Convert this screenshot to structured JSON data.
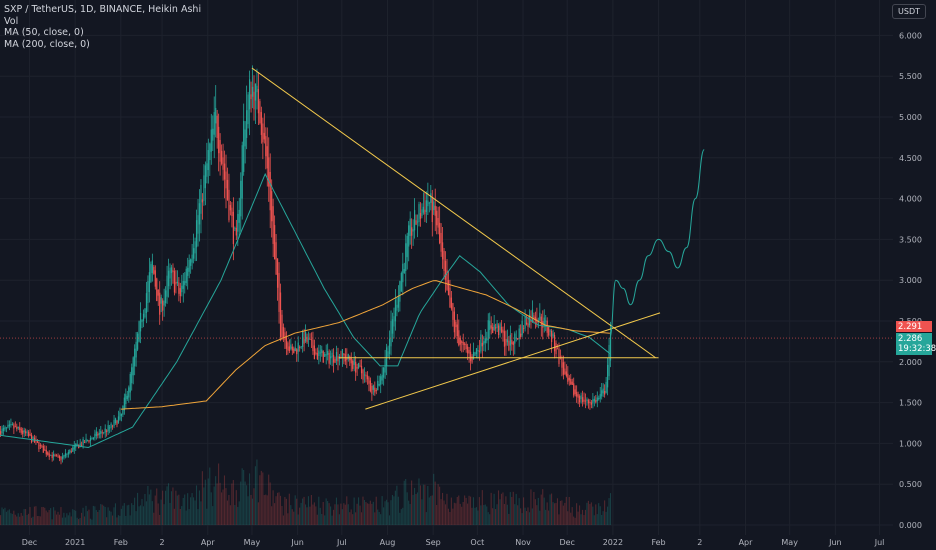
{
  "header": {
    "symbol_line": "SXP / TetherUS, 1D, BINANCE, Heikin Ashi",
    "vol_label": "Vol",
    "ma50_label": "MA (50, close, 0)",
    "ma200_label": "MA (200, close, 0)",
    "currency": "USDT"
  },
  "price_tags": {
    "last_close": "2.291",
    "current": "2.286",
    "countdown": "19:32:38"
  },
  "colors": {
    "background": "#131722",
    "up": "#26a69a",
    "down": "#ef5350",
    "ma50": "#26a69a",
    "ma200": "#f0a53a",
    "trendline": "#f2c94c",
    "projection": "#26a69a",
    "grid": "#1e222d"
  },
  "chart_data": {
    "type": "candlestick",
    "y_axis": {
      "ticks": [
        "6.000",
        "5.500",
        "5.000",
        "4.500",
        "4.000",
        "3.500",
        "3.000",
        "2.500",
        "2.000",
        "1.500",
        "1.000",
        "0.500",
        "0.000"
      ],
      "range": [
        0,
        6.4
      ]
    },
    "x_axis": {
      "ticks": [
        "Dec",
        "2021",
        "Feb",
        "2",
        "Apr",
        "May",
        "Jun",
        "Jul",
        "Aug",
        "Sep",
        "Oct",
        "Nov",
        "Dec",
        "2022",
        "Feb",
        "2",
        "Apr",
        "May",
        "Jun",
        "Jul"
      ],
      "tick_days": [
        20,
        51,
        82,
        110,
        141,
        171,
        202,
        232,
        263,
        294,
        324,
        355,
        385,
        416,
        447,
        475,
        506,
        536,
        567,
        597
      ]
    },
    "price_anchors": [
      [
        0,
        1.15
      ],
      [
        8,
        1.2
      ],
      [
        18,
        1.1
      ],
      [
        30,
        0.9
      ],
      [
        40,
        0.8
      ],
      [
        50,
        0.95
      ],
      [
        60,
        1.05
      ],
      [
        75,
        1.2
      ],
      [
        82,
        1.35
      ],
      [
        88,
        1.8
      ],
      [
        95,
        2.5
      ],
      [
        103,
        3.2
      ],
      [
        108,
        2.6
      ],
      [
        115,
        3.1
      ],
      [
        122,
        2.8
      ],
      [
        132,
        3.6
      ],
      [
        140,
        4.4
      ],
      [
        146,
        5.0
      ],
      [
        150,
        4.5
      ],
      [
        155,
        3.9
      ],
      [
        160,
        3.4
      ],
      [
        165,
        4.9
      ],
      [
        170,
        5.4
      ],
      [
        176,
        5.1
      ],
      [
        182,
        4.2
      ],
      [
        186,
        3.2
      ],
      [
        190,
        2.4
      ],
      [
        198,
        2.1
      ],
      [
        206,
        2.3
      ],
      [
        214,
        2.1
      ],
      [
        222,
        2.05
      ],
      [
        230,
        2.1
      ],
      [
        238,
        2.0
      ],
      [
        246,
        1.85
      ],
      [
        252,
        1.65
      ],
      [
        258,
        1.8
      ],
      [
        265,
        2.4
      ],
      [
        272,
        3.1
      ],
      [
        278,
        3.6
      ],
      [
        284,
        3.8
      ],
      [
        290,
        4.0
      ],
      [
        296,
        3.7
      ],
      [
        302,
        2.9
      ],
      [
        308,
        2.4
      ],
      [
        314,
        2.15
      ],
      [
        320,
        2.05
      ],
      [
        326,
        2.25
      ],
      [
        332,
        2.45
      ],
      [
        338,
        2.4
      ],
      [
        344,
        2.2
      ],
      [
        350,
        2.3
      ],
      [
        356,
        2.5
      ],
      [
        362,
        2.6
      ],
      [
        368,
        2.5
      ],
      [
        374,
        2.3
      ],
      [
        380,
        2.0
      ],
      [
        384,
        1.75
      ],
      [
        390,
        1.6
      ],
      [
        398,
        1.5
      ],
      [
        406,
        1.55
      ],
      [
        410,
        1.65
      ],
      [
        414,
        2.29
      ]
    ],
    "series": [
      {
        "name": "MA (50, close, 0)",
        "anchors": [
          [
            0,
            1.1
          ],
          [
            60,
            0.95
          ],
          [
            90,
            1.2
          ],
          [
            120,
            2.0
          ],
          [
            150,
            3.0
          ],
          [
            180,
            4.3
          ],
          [
            200,
            3.6
          ],
          [
            220,
            2.9
          ],
          [
            240,
            2.3
          ],
          [
            258,
            1.95
          ],
          [
            270,
            1.95
          ],
          [
            285,
            2.6
          ],
          [
            300,
            3.0
          ],
          [
            312,
            3.3
          ],
          [
            326,
            3.1
          ],
          [
            345,
            2.7
          ],
          [
            365,
            2.45
          ],
          [
            385,
            2.4
          ],
          [
            400,
            2.3
          ],
          [
            414,
            2.1
          ]
        ]
      },
      {
        "name": "MA (200, close, 0)",
        "anchors": [
          [
            82,
            1.42
          ],
          [
            110,
            1.45
          ],
          [
            140,
            1.52
          ],
          [
            160,
            1.9
          ],
          [
            180,
            2.2
          ],
          [
            200,
            2.35
          ],
          [
            230,
            2.48
          ],
          [
            260,
            2.7
          ],
          [
            280,
            2.9
          ],
          [
            295,
            3.0
          ],
          [
            310,
            2.92
          ],
          [
            330,
            2.82
          ],
          [
            350,
            2.65
          ],
          [
            370,
            2.45
          ],
          [
            390,
            2.38
          ],
          [
            414,
            2.35
          ]
        ]
      }
    ],
    "trendlines": [
      {
        "from": [
          171,
          5.6
        ],
        "to": [
          445,
          2.05
        ]
      },
      {
        "from": [
          248,
          1.42
        ],
        "to": [
          448,
          2.6
        ]
      },
      {
        "from": [
          230,
          2.05
        ],
        "to": [
          447,
          2.05
        ]
      }
    ],
    "projection": {
      "anchors": [
        [
          414,
          2.3
        ],
        [
          418,
          3.0
        ],
        [
          423,
          2.9
        ],
        [
          428,
          2.7
        ],
        [
          434,
          3.0
        ],
        [
          440,
          3.3
        ],
        [
          447,
          3.5
        ],
        [
          454,
          3.35
        ],
        [
          460,
          3.15
        ],
        [
          466,
          3.4
        ],
        [
          472,
          4.0
        ],
        [
          478,
          4.6
        ]
      ]
    },
    "last_price": 2.291,
    "volume_axis_max": 1.0
  }
}
